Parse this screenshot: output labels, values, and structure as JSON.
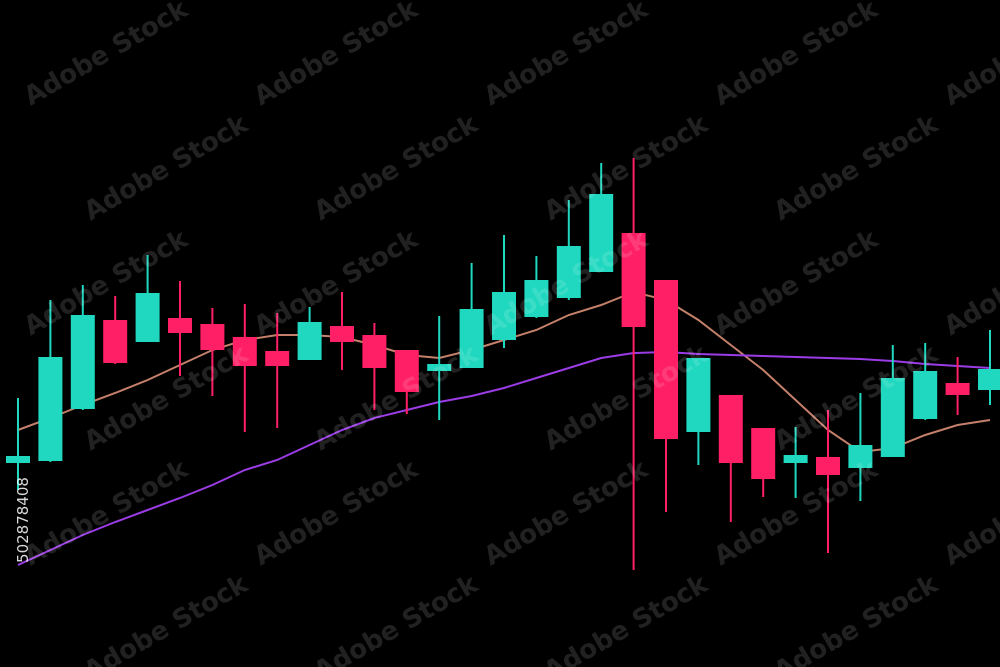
{
  "chart_data": {
    "type": "candlestick",
    "ylim": [
      0,
      667
    ],
    "up_color": "#1fd8bf",
    "down_color": "#ff1f66",
    "open": [
      204,
      206,
      258,
      347,
      325,
      349,
      343,
      330,
      316,
      307,
      341,
      332,
      317,
      296,
      299,
      327,
      350,
      369,
      395,
      434,
      387,
      235,
      272,
      239,
      204,
      210,
      199,
      210,
      248,
      284,
      277
    ],
    "high": [
      269,
      367,
      382,
      371,
      412,
      386,
      359,
      363,
      354,
      360,
      375,
      344,
      317,
      351,
      404,
      432,
      411,
      467,
      504,
      509,
      387,
      309,
      272,
      239,
      240,
      257,
      274,
      322,
      324,
      310,
      337
    ],
    "low": [
      177,
      205,
      257,
      303,
      325,
      291,
      271,
      235,
      239,
      307,
      297,
      257,
      253,
      247,
      299,
      319,
      349,
      367,
      395,
      97,
      155,
      202,
      145,
      170,
      169,
      114,
      166,
      210,
      247,
      252,
      262
    ],
    "close": [
      211,
      310,
      352,
      304,
      374,
      334,
      317,
      301,
      301,
      345,
      325,
      299,
      275,
      303,
      358,
      375,
      387,
      421,
      473,
      340,
      228,
      309,
      204,
      188,
      212,
      192,
      222,
      289,
      296,
      272,
      298
    ],
    "lines": [
      {
        "color": "#c4806a",
        "values": [
          237,
          249,
          262,
          274,
          287,
          302,
          317,
          327,
          332,
          332,
          330,
          322,
          312,
          309,
          317,
          327,
          337,
          352,
          362,
          375,
          367,
          347,
          322,
          297,
          267,
          237,
          215,
          219,
          232,
          242,
          247
        ]
      },
      {
        "color": "#9b3ce6",
        "values": [
          102,
          117,
          132,
          145,
          157,
          169,
          182,
          197,
          207,
          222,
          237,
          249,
          257,
          265,
          271,
          279,
          289,
          299,
          309,
          314,
          315,
          313,
          312,
          311,
          310,
          309,
          308,
          306,
          303,
          301,
          299
        ]
      }
    ]
  },
  "watermark": "Adobe Stock",
  "watermark_id": "502878408"
}
